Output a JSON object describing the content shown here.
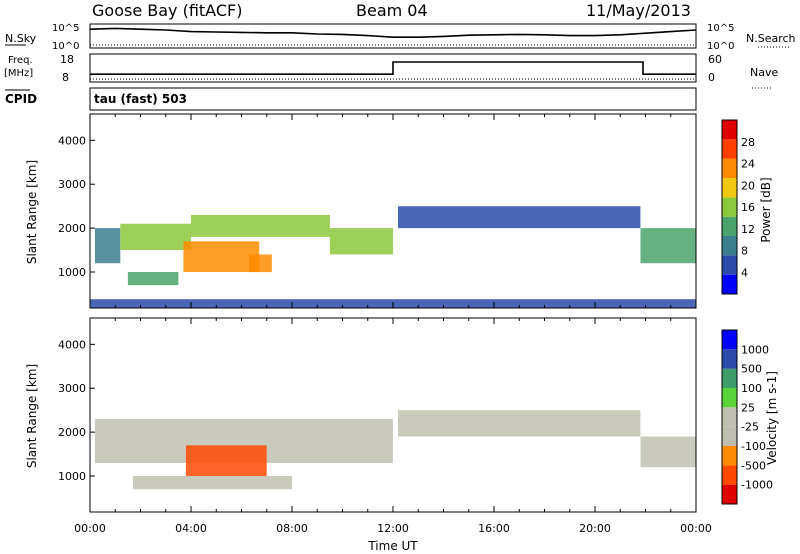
{
  "header": {
    "station": "Goose Bay (fitACF)",
    "beam": "Beam 04",
    "date": "11/May/2013",
    "cpid": "CPID",
    "cpid_value": "tau (fast) 503"
  },
  "noise_panel": {
    "left_label": "N.Sky",
    "right_label": "N.Search",
    "left_ticks": [
      "10^5",
      "10^0"
    ],
    "right_ticks": [
      "10^5",
      "10^0"
    ]
  },
  "freq_panel": {
    "left_label_1": "Freq.",
    "left_label_2": "[MHz]",
    "right_label": "Nave",
    "left_ticks": [
      "18",
      "8"
    ],
    "right_ticks": [
      "60",
      "0"
    ]
  },
  "x_axis": {
    "label": "Time UT",
    "ticks": [
      "00:00",
      "04:00",
      "08:00",
      "12:00",
      "16:00",
      "20:00",
      "00:00"
    ]
  },
  "colors": {
    "power_scale": [
      "#0000ff",
      "#2a4aa8",
      "#3b7f8f",
      "#4aa36a",
      "#8cc83c",
      "#f0c814",
      "#ff8c00",
      "#ff4000",
      "#e00000"
    ],
    "velocity_scale": [
      "#e00000",
      "#ff4a00",
      "#ff8c00",
      "#bfbfb0",
      "#bfbfb0",
      "#5ad23a",
      "#3c9c6a",
      "#2a4aa8",
      "#0000ff"
    ]
  },
  "chart_data": [
    {
      "type": "line",
      "title": "N.Sky",
      "xlabel": "Time UT",
      "ylabel": "N.Sky",
      "x_range_hours": [
        0,
        24
      ],
      "ylim_log10": [
        0,
        5
      ],
      "series": [
        {
          "name": "N.Sky",
          "x": [
            0,
            1,
            2,
            3,
            4,
            5,
            6,
            7,
            8,
            9,
            10,
            11,
            12,
            13,
            14,
            15,
            16,
            17,
            18,
            19,
            20,
            21,
            22,
            23,
            24
          ],
          "values_log10": [
            4.2,
            4.4,
            4.2,
            4.0,
            3.6,
            3.5,
            3.4,
            3.3,
            3.3,
            3.0,
            2.9,
            2.6,
            2.2,
            2.2,
            2.4,
            2.7,
            2.8,
            2.9,
            2.8,
            2.6,
            2.6,
            2.8,
            3.2,
            3.6,
            4.0
          ]
        }
      ]
    },
    {
      "type": "line",
      "title": "Freq.",
      "xlabel": "Time UT",
      "ylabel": "Freq. [MHz]",
      "x_range_hours": [
        0,
        24
      ],
      "ylim": [
        8,
        18
      ],
      "series": [
        {
          "name": "Freq.",
          "x": [
            0,
            5.8,
            5.8,
            12,
            12,
            21.9,
            21.9,
            24
          ],
          "values": [
            10.4,
            10.4,
            10.4,
            10.4,
            15.5,
            15.5,
            10.4,
            10.4
          ]
        }
      ]
    },
    {
      "type": "heatmap",
      "title": "Power [dB]",
      "xlabel": "Time UT",
      "ylabel": "Slant Range [km]",
      "x_range_hours": [
        0,
        24
      ],
      "ylim": [
        180,
        4600
      ],
      "y_ticks": [
        "4000",
        "3000",
        "2000",
        "1000"
      ],
      "colorbar_label": "Power [dB]",
      "colorbar_ticks": [
        "28",
        "24",
        "20",
        "16",
        "12",
        "8",
        "4"
      ],
      "regions": [
        {
          "t0": 0.2,
          "t1": 1.2,
          "r0": 1200,
          "r1": 2000,
          "value": 10
        },
        {
          "t0": 1.2,
          "t1": 4.0,
          "r0": 1500,
          "r1": 2100,
          "value": 16
        },
        {
          "t0": 3.7,
          "t1": 6.7,
          "r0": 1000,
          "r1": 1700,
          "value": 26
        },
        {
          "t0": 4.0,
          "t1": 9.5,
          "r0": 1800,
          "r1": 2300,
          "value": 18
        },
        {
          "t0": 9.5,
          "t1": 12.0,
          "r0": 1400,
          "r1": 2000,
          "value": 16
        },
        {
          "t0": 1.5,
          "t1": 3.5,
          "r0": 700,
          "r1": 1000,
          "value": 12
        },
        {
          "t0": 6.3,
          "t1": 7.2,
          "r0": 1000,
          "r1": 1400,
          "value": 24
        },
        {
          "t0": 12.2,
          "t1": 21.8,
          "r0": 2000,
          "r1": 2500,
          "value": 6
        },
        {
          "t0": 21.8,
          "t1": 24.0,
          "r0": 1200,
          "r1": 2000,
          "value": 14
        },
        {
          "t0": 0.0,
          "t1": 24.0,
          "r0": 180,
          "r1": 380,
          "value": 6
        }
      ]
    },
    {
      "type": "heatmap",
      "title": "Velocity [m s-1]",
      "xlabel": "Time UT",
      "ylabel": "Slant Range [km]",
      "x_range_hours": [
        0,
        24
      ],
      "ylim": [
        180,
        4600
      ],
      "y_ticks": [
        "4000",
        "3000",
        "2000",
        "1000"
      ],
      "colorbar_label": "Velocity [m s-1]",
      "colorbar_ticks": [
        "1000",
        "500",
        "100",
        "25",
        "-25",
        "-100",
        "-500",
        "-1000"
      ],
      "regions": [
        {
          "t0": 0.2,
          "t1": 12.0,
          "r0": 1300,
          "r1": 2300,
          "value": 0
        },
        {
          "t0": 3.8,
          "t1": 7.0,
          "r0": 1000,
          "r1": 1700,
          "value": -300
        },
        {
          "t0": 1.7,
          "t1": 8.0,
          "r0": 700,
          "r1": 1000,
          "value": 0
        },
        {
          "t0": 12.2,
          "t1": 21.8,
          "r0": 1900,
          "r1": 2500,
          "value": 0
        },
        {
          "t0": 21.8,
          "t1": 24.0,
          "r0": 1200,
          "r1": 1900,
          "value": 0
        }
      ]
    }
  ]
}
